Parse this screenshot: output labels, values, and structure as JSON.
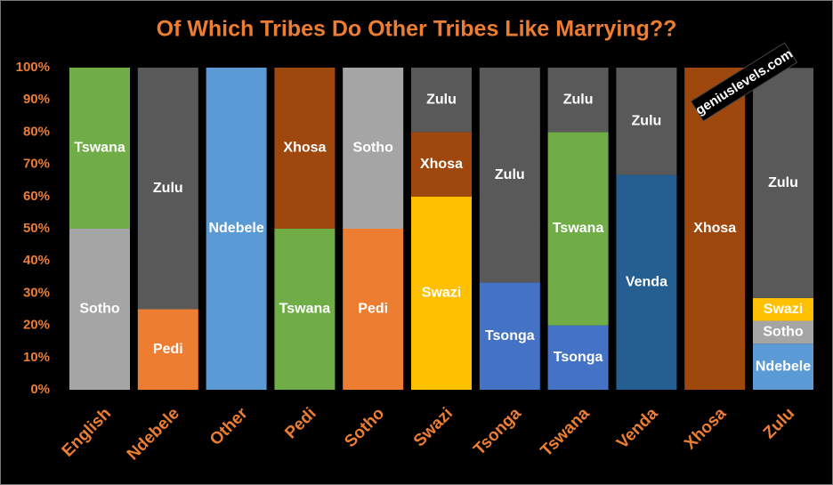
{
  "chart_data": {
    "type": "stacked_bar_100",
    "title": "Of Which Tribes Do Other Tribes Like Marrying??",
    "annotation": "geniuslevels.com",
    "categories": [
      "English",
      "Ndebele",
      "Other",
      "Pedi",
      "Sotho",
      "Swazi",
      "Tsonga",
      "Tswana",
      "Venda",
      "Xhosa",
      "Zulu"
    ],
    "series": [
      {
        "name": "Ndebele",
        "color": "#5b9bd5",
        "values": [
          null,
          null,
          100,
          null,
          null,
          null,
          null,
          null,
          null,
          null,
          14.3
        ]
      },
      {
        "name": "Pedi",
        "color": "#ed7d31",
        "values": [
          null,
          25,
          null,
          null,
          50,
          null,
          null,
          null,
          null,
          null,
          null
        ]
      },
      {
        "name": "Sotho",
        "color": "#a5a5a5",
        "values": [
          50,
          null,
          null,
          null,
          50,
          null,
          null,
          null,
          null,
          null,
          7.1
        ]
      },
      {
        "name": "Swazi",
        "color": "#ffc000",
        "values": [
          null,
          null,
          null,
          null,
          null,
          60,
          null,
          null,
          null,
          null,
          7.1
        ]
      },
      {
        "name": "Tsonga",
        "color": "#4472c4",
        "values": [
          null,
          null,
          null,
          null,
          null,
          null,
          33.3,
          20,
          null,
          null,
          null
        ]
      },
      {
        "name": "Tswana",
        "color": "#70ad47",
        "values": [
          50,
          null,
          null,
          50,
          null,
          null,
          null,
          60,
          null,
          null,
          null
        ]
      },
      {
        "name": "Venda",
        "color": "#255e91",
        "values": [
          null,
          null,
          null,
          null,
          null,
          null,
          null,
          null,
          66.7,
          null,
          null
        ]
      },
      {
        "name": "Xhosa",
        "color": "#9e480e",
        "values": [
          null,
          null,
          null,
          50,
          null,
          20,
          null,
          null,
          null,
          100,
          null
        ]
      },
      {
        "name": "Zulu",
        "color": "#595959",
        "values": [
          null,
          75,
          null,
          null,
          null,
          20,
          66.7,
          20,
          33.3,
          null,
          71.4
        ]
      }
    ],
    "ylim": [
      0,
      100
    ],
    "yticks": [
      {
        "value": 0,
        "label": "0%"
      },
      {
        "value": 10,
        "label": "10%"
      },
      {
        "value": 20,
        "label": "20%"
      },
      {
        "value": 30,
        "label": "30%"
      },
      {
        "value": 40,
        "label": "40%"
      },
      {
        "value": 50,
        "label": "50%"
      },
      {
        "value": 60,
        "label": "60%"
      },
      {
        "value": 70,
        "label": "70%"
      },
      {
        "value": 80,
        "label": "80%"
      },
      {
        "value": 90,
        "label": "90%"
      },
      {
        "value": 100,
        "label": "100%"
      }
    ],
    "grid": false
  }
}
